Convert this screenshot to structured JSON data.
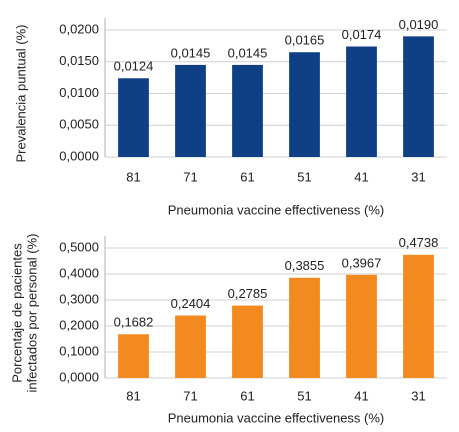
{
  "chart_data": [
    {
      "type": "bar",
      "y_label": "Prevalencia puntual (%)",
      "x_label": "Pneumonia vaccine effectiveness (%)",
      "categories": [
        "81",
        "71",
        "61",
        "51",
        "41",
        "31"
      ],
      "values": [
        0.0124,
        0.0145,
        0.0145,
        0.0165,
        0.0174,
        0.019
      ],
      "value_labels": [
        "0,0124",
        "0,0145",
        "0,0145",
        "0,0165",
        "0,0174",
        "0,0190"
      ],
      "color": "#0f3f84",
      "ylim": [
        0,
        0.02
      ],
      "yticks": [
        {
          "value": 0,
          "label": "0,0000"
        },
        {
          "value": 0.005,
          "label": "0,0050"
        },
        {
          "value": 0.01,
          "label": "0,0100"
        },
        {
          "value": 0.015,
          "label": "0,0150"
        },
        {
          "value": 0.02,
          "label": "0,0200"
        }
      ],
      "grid": true
    },
    {
      "type": "bar",
      "y_label": [
        "Porcentaje de pacientes",
        "infectados por personal (%)"
      ],
      "x_label": "Pneumonia vaccine effectiveness (%)",
      "categories": [
        "81",
        "71",
        "61",
        "51",
        "41",
        "31"
      ],
      "values": [
        0.1682,
        0.2404,
        0.2785,
        0.3855,
        0.3967,
        0.4738
      ],
      "value_labels": [
        "0,1682",
        "0,2404",
        "0,2785",
        "0,3855",
        "0,3967",
        "0,4738"
      ],
      "color": "#f28a1f",
      "ylim": [
        0,
        0.5
      ],
      "yticks": [
        {
          "value": 0,
          "label": "0,0000"
        },
        {
          "value": 0.1,
          "label": "0,1000"
        },
        {
          "value": 0.2,
          "label": "0,2000"
        },
        {
          "value": 0.3,
          "label": "0,3000"
        },
        {
          "value": 0.4,
          "label": "0,4000"
        },
        {
          "value": 0.5,
          "label": "0,5000"
        }
      ],
      "grid": true
    }
  ]
}
